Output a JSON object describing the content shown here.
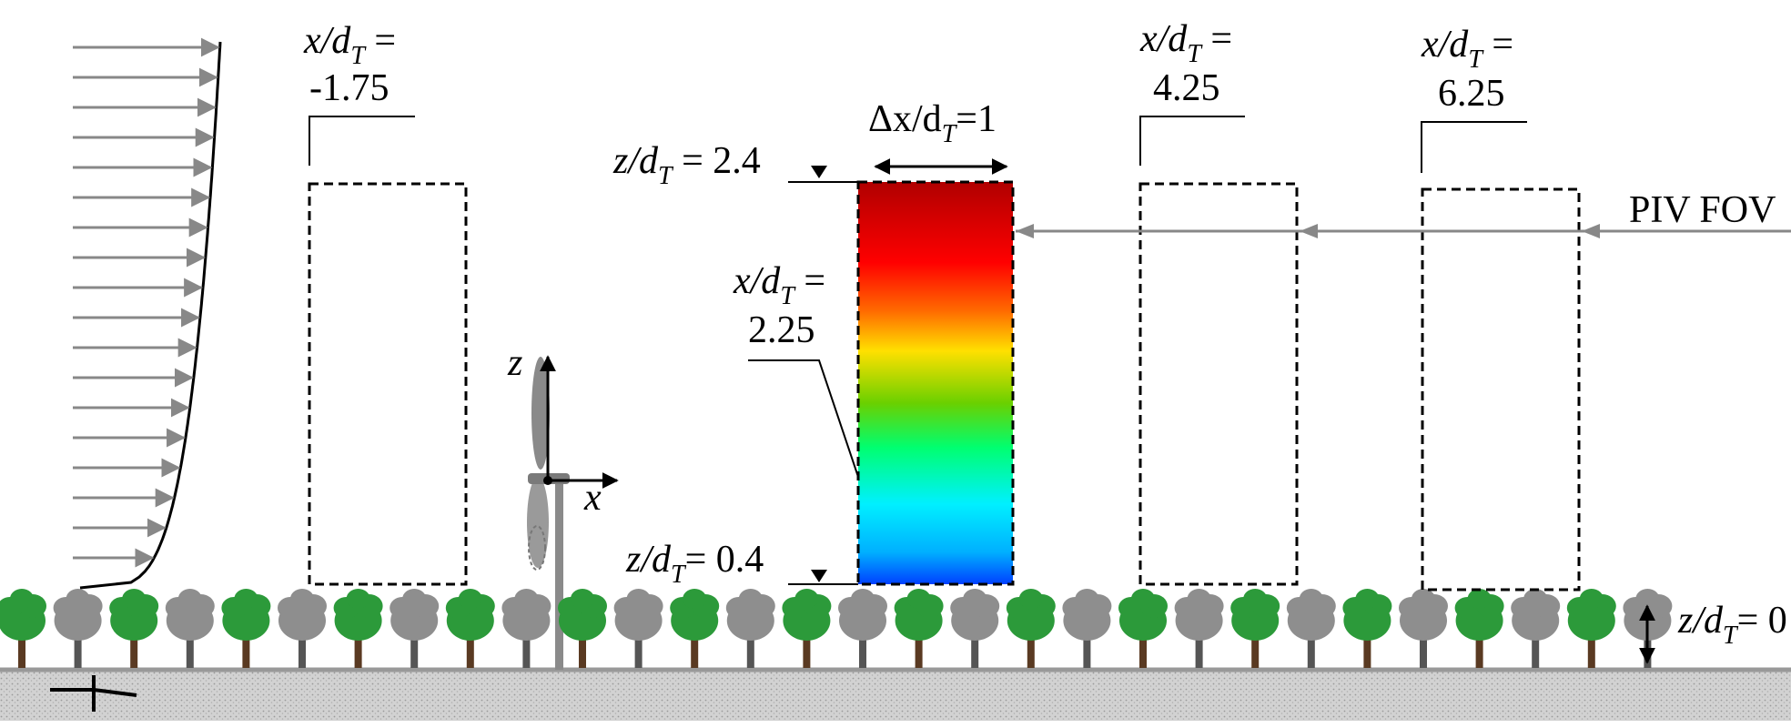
{
  "labels": {
    "x_var": "x/d",
    "z_var": "z/d",
    "sub_t": "T",
    "eq": " =",
    "eq_tight": "=",
    "delta_x": "Δx/d",
    "delta_x_value": "1",
    "fov": "PIV FOV",
    "axis_z": "z",
    "axis_x": "x"
  },
  "stations": [
    {
      "value": "-1.75"
    },
    {
      "value": "2.25"
    },
    {
      "value": "4.25"
    },
    {
      "value": "6.25"
    }
  ],
  "heights": {
    "top": "2.4",
    "bottom": "0.4",
    "canopy": "0"
  },
  "colors": {
    "frame": "#000000",
    "arrow": "#888888",
    "tree_green": "#2c9a3a",
    "tree_grey": "#8e8e8e",
    "trunk": "#5a3a22",
    "ground": "#c8c8c8"
  }
}
